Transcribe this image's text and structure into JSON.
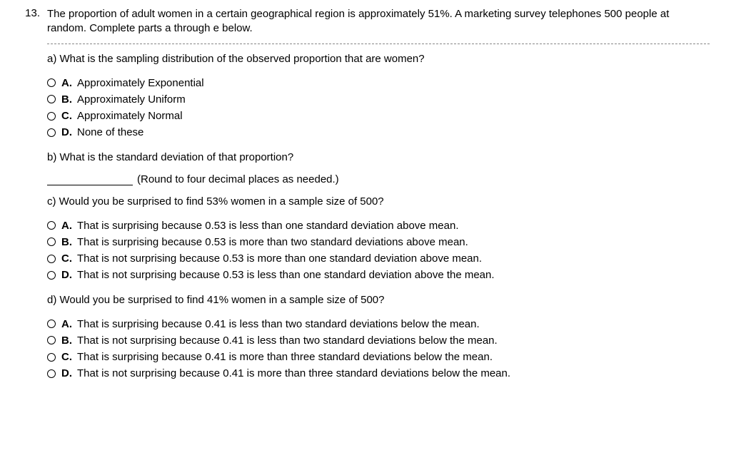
{
  "question_number": "13.",
  "stem": "The proportion of adult women in a certain geographical region is approximately 51%. A marketing survey telephones 500 people at random. Complete parts a through e below.",
  "part_a": {
    "prompt": "a) What is the sampling distribution of the observed proportion that are women?",
    "options": {
      "A": "Approximately Exponential",
      "B": "Approximately Uniform",
      "C": "Approximately Normal",
      "D": "None of these"
    }
  },
  "part_b": {
    "prompt": "b) What is the standard deviation of that proportion?",
    "hint": "(Round to four decimal places as needed.)"
  },
  "part_c": {
    "prompt": "c) Would you be surprised to find 53% women in a sample size of 500?",
    "options": {
      "A": "That is surprising because 0.53 is less than one standard deviation above mean.",
      "B": "That is surprising because 0.53 is more than two standard deviations above mean.",
      "C": "That is not surprising because 0.53 is more than one standard deviation above mean.",
      "D": "That is not surprising because 0.53 is less than one standard deviation above the mean."
    }
  },
  "part_d": {
    "prompt": "d) Would you be surprised to find 41% women in a sample size of 500?",
    "options": {
      "A": "That is surprising because 0.41 is less than two standard deviations below the mean.",
      "B": "That is not surprising because 0.41 is less than two standard deviations below the mean.",
      "C": "That is surprising because 0.41 is more than three standard deviations below the mean.",
      "D": "That is not surprising because 0.41 is more than three standard deviations below the mean."
    }
  },
  "letters": {
    "A": "A.",
    "B": "B.",
    "C": "C.",
    "D": "D."
  }
}
